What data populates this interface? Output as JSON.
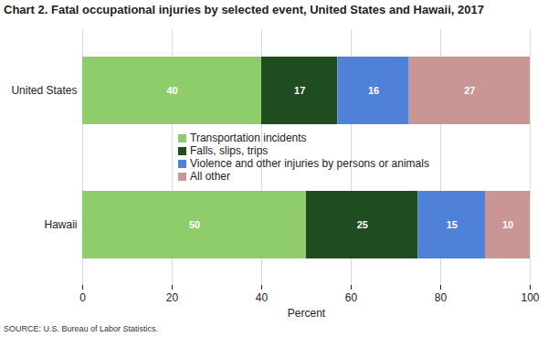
{
  "chart_data": {
    "type": "bar",
    "orientation": "horizontal",
    "stacked": true,
    "data_labels": true,
    "grid": true,
    "legend": "center",
    "title": "Chart 2. Fatal occupational injuries by selected event, United States and Hawaii, 2017",
    "caption": "SOURCE: U.S. Bureau of Labor Statistics.",
    "xlabel": "Percent",
    "categories": [
      "United States",
      "Hawaii"
    ],
    "series": [
      {
        "name": "Transportation incidents",
        "color": "#8fcc6c",
        "values": [
          40,
          50
        ]
      },
      {
        "name": "Falls, slips, trips",
        "color": "#1f4d1f",
        "values": [
          17,
          25
        ]
      },
      {
        "name": "Violence and other injuries by persons or animals",
        "color": "#4f81d9",
        "values": [
          16,
          15
        ]
      },
      {
        "name": "All other",
        "color": "#c99595",
        "values": [
          27,
          10
        ]
      }
    ],
    "xlim": [
      0,
      100
    ],
    "xticks": [
      0,
      20,
      40,
      60,
      80,
      100
    ]
  }
}
